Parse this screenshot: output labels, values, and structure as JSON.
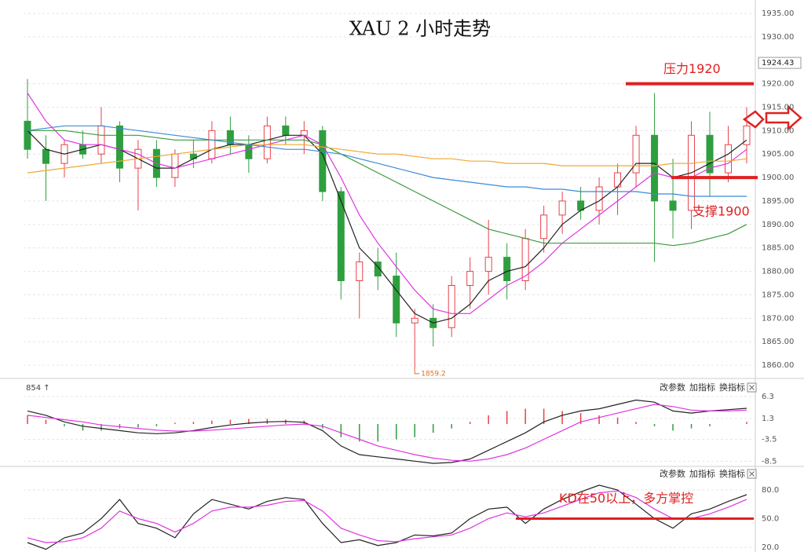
{
  "chart_data": [
    {
      "type": "candlestick",
      "title": "XAU 2 小时走势",
      "open": [
        1912,
        1906,
        1903,
        1907,
        1905,
        1911,
        1902,
        1906,
        1900,
        1905,
        1904,
        1910,
        1907,
        1904,
        1911,
        1909,
        1910,
        1897,
        1878,
        1882,
        1879,
        1869,
        1870,
        1868,
        1877,
        1880,
        1883,
        1878,
        1887,
        1892,
        1895,
        1893,
        1898,
        1901,
        1909,
        1895,
        1893,
        1909,
        1901,
        1907
      ],
      "high": [
        1921,
        1909,
        1908,
        1910,
        1915,
        1912,
        1908,
        1908,
        1906,
        1908,
        1912,
        1913,
        1909,
        1913,
        1913,
        1912,
        1911,
        1898,
        1884,
        1885,
        1884,
        1872,
        1873,
        1879,
        1883,
        1891,
        1886,
        1889,
        1894,
        1897,
        1898,
        1900,
        1903,
        1911,
        1918,
        1904,
        1912,
        1914,
        1911,
        1915
      ],
      "low": [
        1904,
        1895,
        1900,
        1904,
        1903,
        1899,
        1893,
        1898,
        1898,
        1902,
        1903,
        1905,
        1901,
        1903,
        1907,
        1905,
        1895,
        1874,
        1870,
        1876,
        1866,
        1859.2,
        1864,
        1866,
        1872,
        1875,
        1874,
        1876,
        1884,
        1888,
        1891,
        1890,
        1892,
        1898,
        1882,
        1887,
        1889,
        1896,
        1899,
        1903
      ],
      "close": [
        1906,
        1903,
        1907,
        1905,
        1911,
        1902,
        1906,
        1900,
        1905,
        1904,
        1910,
        1907,
        1904,
        1911,
        1909,
        1910,
        1897,
        1878,
        1882,
        1879,
        1869,
        1870,
        1868,
        1877,
        1880,
        1883,
        1878,
        1887,
        1892,
        1895,
        1893,
        1898,
        1901,
        1909,
        1895,
        1893,
        1909,
        1901,
        1907,
        1911
      ],
      "up_color": "#e8414b",
      "down_color": "#2e9e3e",
      "series": [
        {
          "color": "#222222",
          "values": [
            1910,
            1906,
            1905,
            1906,
            1907,
            1906,
            1904,
            1902,
            1902,
            1904,
            1906,
            1907,
            1907,
            1908,
            1909,
            1909,
            1905,
            1895,
            1885,
            1881,
            1876,
            1871,
            1869,
            1870,
            1873,
            1878,
            1880,
            1881,
            1885,
            1890,
            1893,
            1895,
            1898,
            1903,
            1903,
            1900,
            1901,
            1903,
            1905,
            1908
          ]
        },
        {
          "color": "#e033e0",
          "values": [
            1918,
            1912,
            1908,
            1907,
            1907,
            1906,
            1905,
            1903,
            1902,
            1903,
            1904,
            1905,
            1906,
            1907,
            1908,
            1909,
            1907,
            1900,
            1892,
            1886,
            1881,
            1876,
            1872,
            1871,
            1871,
            1874,
            1877,
            1879,
            1882,
            1886,
            1889,
            1892,
            1895,
            1898,
            1901,
            1900,
            1900,
            1902,
            1903,
            1906
          ]
        },
        {
          "color": "#3a9a3a",
          "values": [
            1910,
            1910,
            1910,
            1909.5,
            1909,
            1909,
            1909,
            1908.5,
            1908,
            1908,
            1908,
            1908,
            1908,
            1908,
            1908,
            1908,
            1907,
            1905,
            1903,
            1901,
            1899,
            1897,
            1895,
            1893,
            1891,
            1889,
            1888,
            1887,
            1886,
            1886,
            1886,
            1886,
            1886,
            1886,
            1886,
            1885.5,
            1886,
            1887,
            1888,
            1890
          ]
        },
        {
          "color": "#f0a830",
          "values": [
            1901,
            1901.5,
            1902,
            1902.5,
            1903,
            1903.5,
            1904,
            1904.5,
            1905,
            1905.5,
            1906,
            1906.5,
            1907,
            1907,
            1907,
            1907,
            1906.5,
            1906,
            1905.5,
            1905,
            1905,
            1904.5,
            1904,
            1904,
            1903.5,
            1903.5,
            1903,
            1903,
            1903,
            1902.5,
            1902.5,
            1902.5,
            1902.5,
            1902.5,
            1902.5,
            1903,
            1903,
            1903.5,
            1903.5,
            1904
          ]
        },
        {
          "color": "#3a8ad8",
          "values": [
            1910,
            1910.5,
            1911,
            1911,
            1911,
            1910.5,
            1910,
            1909.5,
            1909,
            1908.5,
            1908,
            1907.5,
            1907,
            1906.5,
            1906,
            1906,
            1905.5,
            1905,
            1904,
            1903,
            1902,
            1901,
            1900,
            1899.5,
            1899,
            1898.5,
            1898,
            1898,
            1897.5,
            1897.5,
            1897,
            1897,
            1897,
            1897,
            1896.5,
            1896.5,
            1896,
            1896,
            1896,
            1896
          ]
        }
      ],
      "ylim": [
        1857.5,
        1937
      ],
      "yticks": [
        {
          "value": 1860,
          "label": "1860.00"
        },
        {
          "value": 1865,
          "label": "1865.00"
        },
        {
          "value": 1870,
          "label": "1870.00"
        },
        {
          "value": 1875,
          "label": "1875.00"
        },
        {
          "value": 1880,
          "label": "1880.00"
        },
        {
          "value": 1885,
          "label": "1885.00"
        },
        {
          "value": 1890,
          "label": "1890.00"
        },
        {
          "value": 1895,
          "label": "1895.00"
        },
        {
          "value": 1900,
          "label": "1900.00"
        },
        {
          "value": 1905,
          "label": "1905.00"
        },
        {
          "value": 1910,
          "label": "1910.00"
        },
        {
          "value": 1915,
          "label": "1915.00"
        },
        {
          "value": 1920,
          "label": "1920.00"
        },
        {
          "value": 1930,
          "label": "1930.00"
        },
        {
          "value": 1935,
          "label": "1935.00"
        }
      ],
      "grid": true,
      "current_price": 1924.43,
      "resistance": {
        "label": "压力1920",
        "value": 1920
      },
      "support": {
        "label": "支撑1900",
        "value": 1900
      }
    },
    {
      "type": "macd",
      "label": "854 ↑",
      "buttons": [
        "改参数",
        "加指标",
        "换指标"
      ],
      "histogram": [
        2,
        1,
        -0.5,
        -1.5,
        -1.5,
        -1,
        -0.8,
        -0.5,
        0.3,
        0.5,
        0.8,
        1,
        1.2,
        1.2,
        1,
        0.8,
        -1,
        -3,
        -4,
        -4,
        -3.5,
        -3,
        -2,
        -1,
        0.5,
        2,
        3,
        3.5,
        3.5,
        3,
        2.5,
        2,
        1.5,
        0.5,
        -0.5,
        -1.5,
        -1,
        -0.5,
        0,
        0.5
      ],
      "series": [
        {
          "color": "#222222",
          "values": [
            3,
            2,
            0.5,
            -0.5,
            -1,
            -1.5,
            -2,
            -2.2,
            -2,
            -1.5,
            -0.8,
            -0.2,
            0.2,
            0.5,
            0.6,
            0.4,
            -1.5,
            -5,
            -7,
            -7.5,
            -8,
            -8.5,
            -9,
            -8.8,
            -8,
            -6,
            -4,
            -2,
            0.5,
            2,
            3,
            3.5,
            4.5,
            5.5,
            5,
            3,
            2.5,
            3,
            3.3,
            3.6
          ]
        },
        {
          "color": "#e033e0",
          "values": [
            2,
            1.5,
            1,
            0.5,
            -0.2,
            -0.6,
            -1,
            -1.4,
            -1.6,
            -1.6,
            -1.4,
            -1.1,
            -0.8,
            -0.5,
            -0.2,
            0,
            -0.5,
            -2,
            -3.5,
            -5,
            -6,
            -7,
            -7.8,
            -8.3,
            -8.5,
            -8,
            -7,
            -5.5,
            -3.5,
            -1.5,
            0.5,
            1.5,
            2.5,
            3.5,
            4.5,
            4,
            3.2,
            3,
            3,
            3.2
          ]
        }
      ],
      "up_color": "#e8414b",
      "down_color": "#2e9e3e",
      "ylim": [
        -9.7,
        9
      ],
      "yticks": [
        6.3,
        1.3,
        -3.5,
        -8.5
      ],
      "grid": true
    },
    {
      "type": "kd",
      "buttons": [
        "改参数",
        "加指标",
        "换指标"
      ],
      "series": [
        {
          "color": "#222222",
          "values": [
            25,
            18,
            30,
            35,
            50,
            70,
            45,
            40,
            30,
            55,
            70,
            65,
            60,
            68,
            72,
            70,
            45,
            25,
            28,
            22,
            25,
            33,
            32,
            35,
            50,
            60,
            62,
            45,
            60,
            70,
            78,
            85,
            80,
            65,
            50,
            40,
            55,
            60,
            68,
            75
          ]
        },
        {
          "color": "#e033e0",
          "values": [
            30,
            25,
            26,
            30,
            40,
            58,
            50,
            45,
            36,
            45,
            58,
            62,
            62,
            64,
            68,
            69,
            58,
            40,
            33,
            27,
            26,
            29,
            31,
            33,
            40,
            50,
            56,
            52,
            56,
            63,
            70,
            77,
            79,
            72,
            60,
            50,
            50,
            55,
            62,
            70
          ]
        }
      ],
      "ylim": [
        16,
        98
      ],
      "yticks": [
        {
          "value": 80,
          "label": "80.0"
        },
        {
          "value": 50,
          "label": "50.0"
        },
        {
          "value": 20,
          "label": "20.0"
        }
      ],
      "grid": true,
      "annotation": {
        "label": "KD在50以上，多方掌控",
        "value": 50
      }
    }
  ]
}
